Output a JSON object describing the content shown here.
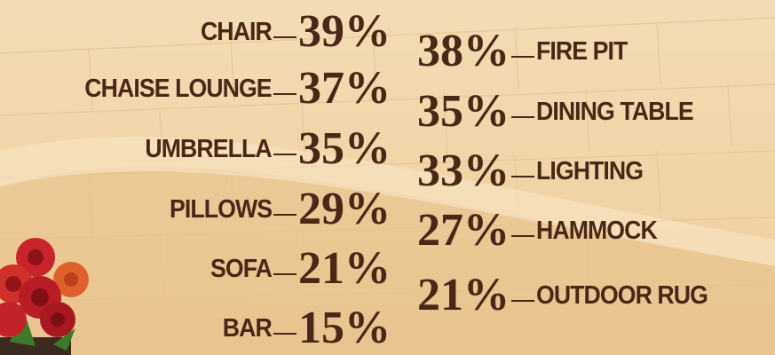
{
  "left_items": [
    {
      "label": "CHAIR",
      "value": "39%"
    },
    {
      "label": "CHAISE LOUNGE",
      "value": "37%"
    },
    {
      "label": "UMBRELLA",
      "value": "35%"
    },
    {
      "label": "PILLOWS",
      "value": "29%"
    },
    {
      "label": "SOFA",
      "value": "21%"
    },
    {
      "label": "BAR",
      "value": "15%"
    }
  ],
  "right_items": [
    {
      "label": "FIRE PIT",
      "value": "38%"
    },
    {
      "label": "DINING TABLE",
      "value": "35%"
    },
    {
      "label": "LIGHTING",
      "value": "33%"
    },
    {
      "label": "HAMMOCK",
      "value": "27%"
    },
    {
      "label": "OUTDOOR RUG",
      "value": "21%"
    }
  ]
}
